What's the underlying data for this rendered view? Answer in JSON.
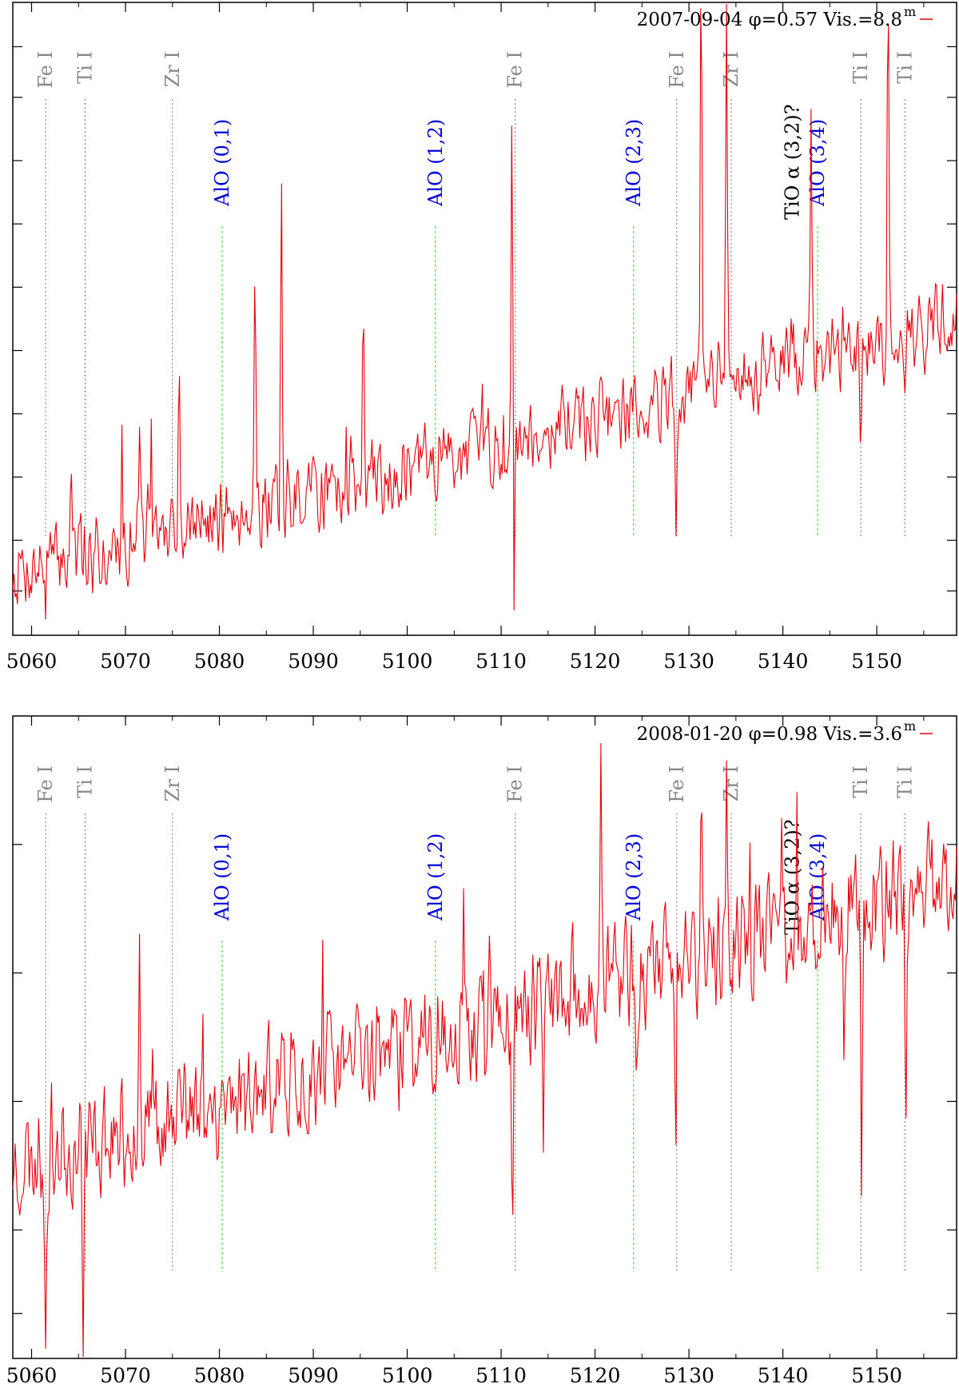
{
  "chart_data": [
    {
      "type": "line",
      "title": "",
      "xlabel": "",
      "ylabel": "",
      "xlim": [
        5058,
        5158.5
      ],
      "ylim": [
        0,
        1
      ],
      "grid": false,
      "legend_position": "top-right",
      "x_tick_labels": [
        "5060",
        "5070",
        "5080",
        "5090",
        "5100",
        "5110",
        "5120",
        "5130",
        "5140",
        "5150"
      ],
      "x_ticks": [
        5060,
        5070,
        5080,
        5090,
        5100,
        5110,
        5120,
        5130,
        5140,
        5150
      ],
      "y_ticks": [
        0.07,
        0.15,
        0.25,
        0.35,
        0.45,
        0.55,
        0.65,
        0.75,
        0.85,
        0.93
      ],
      "series": [
        {
          "name": "2007-09-04 φ=0.57 Vis.=8.8",
          "legend_label": "2007-09-04 φ=0.57 Vis.=8.8",
          "legend_superscript": "m",
          "color": "#e8000b",
          "x_start": 5058,
          "x_step": 0.5,
          "trend_start": 0.1,
          "trend_end": 0.5,
          "noise": 0.05,
          "seed": 7,
          "spikes": [
            [
              5061.5,
              -0.06
            ],
            [
              5064.2,
              0.18
            ],
            [
              5065.5,
              -0.05
            ],
            [
              5071.5,
              0.15
            ],
            [
              5075.7,
              0.3
            ],
            [
              5083.8,
              0.4
            ],
            [
              5086.6,
              0.5
            ],
            [
              5095.3,
              0.3
            ],
            [
              5111.2,
              0.75
            ],
            [
              5111.3,
              -0.5
            ],
            [
              5128.6,
              -0.2
            ],
            [
              5131.3,
              0.75
            ],
            [
              5134.0,
              0.7
            ],
            [
              5143.0,
              0.4
            ],
            [
              5148.3,
              -0.2
            ],
            [
              5151.2,
              0.55
            ],
            [
              5153.1,
              -0.06
            ]
          ]
        }
      ],
      "annotations": [
        {
          "label": "Fe I",
          "x": 5061.5,
          "color": "#888888",
          "kind": "atomic"
        },
        {
          "label": "Ti I",
          "x": 5065.7,
          "color": "#888888",
          "kind": "atomic"
        },
        {
          "label": "Zr I",
          "x": 5075.0,
          "color": "#888888",
          "kind": "atomic"
        },
        {
          "label": "Fe I",
          "x": 5111.5,
          "color": "#888888",
          "kind": "atomic"
        },
        {
          "label": "Fe I",
          "x": 5128.7,
          "color": "#888888",
          "kind": "atomic"
        },
        {
          "label": "Zr I",
          "x": 5134.5,
          "color": "#888888",
          "kind": "atomic"
        },
        {
          "label": "Ti I",
          "x": 5148.3,
          "color": "#888888",
          "kind": "atomic"
        },
        {
          "label": "Ti I",
          "x": 5153.0,
          "color": "#888888",
          "kind": "atomic"
        },
        {
          "label": "AlO (0,1)",
          "x": 5080.3,
          "color": "#0000dd",
          "kind": "molecular"
        },
        {
          "label": "AlO (1,2)",
          "x": 5103.0,
          "color": "#0000dd",
          "kind": "molecular"
        },
        {
          "label": "AlO (2,3)",
          "x": 5124.1,
          "color": "#0000dd",
          "kind": "molecular"
        },
        {
          "label": "AlO (3,4)",
          "x": 5143.7,
          "color": "#0000dd",
          "kind": "molecular"
        },
        {
          "label": "TiO α (3,2)?",
          "x": 5141.0,
          "color": "#000000",
          "kind": "text"
        }
      ]
    },
    {
      "type": "line",
      "title": "",
      "xlabel": "",
      "ylabel": "",
      "xlim": [
        5058,
        5158.5
      ],
      "ylim": [
        0,
        1
      ],
      "grid": false,
      "legend_position": "top-right",
      "x_tick_labels": [
        "5060",
        "5070",
        "5080",
        "5090",
        "5100",
        "5110",
        "5120",
        "5130",
        "5140",
        "5150"
      ],
      "x_ticks": [
        5060,
        5070,
        5080,
        5090,
        5100,
        5110,
        5120,
        5130,
        5140,
        5150
      ],
      "y_ticks": [
        0.07,
        0.2,
        0.4,
        0.6,
        0.8
      ],
      "series": [
        {
          "name": "2008-01-20 φ=0.98 Vis.=3.6",
          "legend_label": "2008-01-20 φ=0.98 Vis.=3.6",
          "legend_superscript": "m",
          "color": "#e8000b",
          "x_start": 5058,
          "x_step": 0.5,
          "trend_start": 0.3,
          "trend_end": 0.75,
          "noise": 0.07,
          "seed": 23,
          "spikes": [
            [
              5061.5,
              -0.3
            ],
            [
              5065.5,
              -0.3
            ],
            [
              5071.5,
              0.3
            ],
            [
              5111.2,
              -0.45
            ],
            [
              5114.5,
              -0.15
            ],
            [
              5120.6,
              0.35
            ],
            [
              5124.4,
              -0.15
            ],
            [
              5128.6,
              -0.35
            ],
            [
              5131.3,
              0.3
            ],
            [
              5134.0,
              0.25
            ],
            [
              5146.5,
              -0.2
            ],
            [
              5148.4,
              -0.5
            ],
            [
              5153.1,
              -0.4
            ]
          ]
        }
      ],
      "annotations": [
        {
          "label": "Fe I",
          "x": 5061.5,
          "color": "#888888",
          "kind": "atomic"
        },
        {
          "label": "Ti I",
          "x": 5065.7,
          "color": "#888888",
          "kind": "atomic"
        },
        {
          "label": "Zr I",
          "x": 5075.0,
          "color": "#888888",
          "kind": "atomic"
        },
        {
          "label": "Fe I",
          "x": 5111.5,
          "color": "#888888",
          "kind": "atomic"
        },
        {
          "label": "Fe I",
          "x": 5128.7,
          "color": "#888888",
          "kind": "atomic"
        },
        {
          "label": "Zr I",
          "x": 5134.5,
          "color": "#888888",
          "kind": "atomic"
        },
        {
          "label": "Ti I",
          "x": 5148.3,
          "color": "#888888",
          "kind": "atomic"
        },
        {
          "label": "Ti I",
          "x": 5153.0,
          "color": "#888888",
          "kind": "atomic"
        },
        {
          "label": "AlO (0,1)",
          "x": 5080.3,
          "color": "#0000dd",
          "kind": "molecular"
        },
        {
          "label": "AlO (1,2)",
          "x": 5103.0,
          "color": "#0000dd",
          "kind": "molecular"
        },
        {
          "label": "AlO (2,3)",
          "x": 5124.1,
          "color": "#0000dd",
          "kind": "molecular"
        },
        {
          "label": "AlO (3,4)",
          "x": 5143.7,
          "color": "#0000dd",
          "kind": "molecular"
        },
        {
          "label": "TiO α (3,2)?",
          "x": 5141.0,
          "color": "#000000",
          "kind": "text"
        }
      ]
    }
  ]
}
